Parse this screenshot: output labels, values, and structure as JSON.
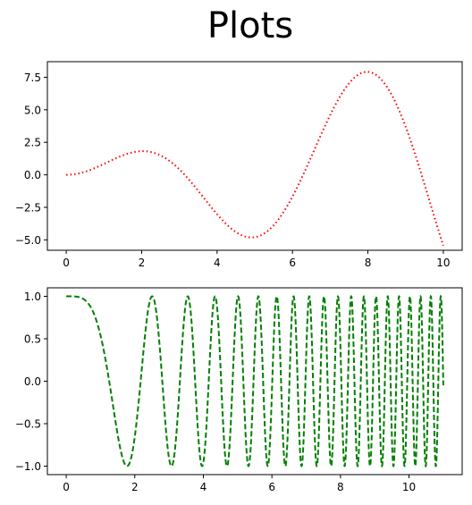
{
  "figure": {
    "suptitle": "Plots"
  },
  "chart_data": [
    {
      "type": "line",
      "title": "",
      "xlabel": "",
      "ylabel": "",
      "xlim": [
        -0.5,
        10.5
      ],
      "ylim": [
        -5.8,
        8.7
      ],
      "xticks": [
        0,
        2,
        4,
        6,
        8,
        10
      ],
      "xtick_labels": [
        "0",
        "2",
        "4",
        "6",
        "8",
        "10"
      ],
      "yticks": [
        -5.0,
        -2.5,
        0.0,
        2.5,
        5.0,
        7.5
      ],
      "ytick_labels": [
        "−5.0",
        "−2.5",
        "0.0",
        "2.5",
        "5.0",
        "7.5"
      ],
      "grid": false,
      "legend": null,
      "series": [
        {
          "color": "#ff0000",
          "line_style": "dotted",
          "x": [
            0.0,
            0.25,
            0.5,
            0.75,
            1.0,
            1.25,
            1.5,
            1.75,
            2.0,
            2.25,
            2.5,
            2.75,
            3.0,
            3.25,
            3.5,
            3.75,
            4.0,
            4.25,
            4.5,
            4.75,
            5.0,
            5.25,
            5.5,
            5.75,
            6.0,
            6.25,
            6.5,
            6.75,
            7.0,
            7.25,
            7.5,
            7.75,
            8.0,
            8.25,
            8.5,
            8.75,
            9.0,
            9.25,
            9.5,
            9.75,
            10.0
          ],
          "y": [
            0.0,
            0.06,
            0.24,
            0.51,
            0.84,
            1.19,
            1.5,
            1.73,
            1.82,
            1.75,
            1.5,
            1.05,
            0.42,
            -0.36,
            -1.23,
            -2.14,
            -3.03,
            -3.82,
            -4.4,
            -4.74,
            -4.79,
            -4.51,
            -3.89,
            -2.93,
            -1.68,
            -0.21,
            1.4,
            3.04,
            4.6,
            5.95,
            7.03,
            7.7,
            7.91,
            7.58,
            6.8,
            5.43,
            3.71,
            1.63,
            -0.72,
            -3.13,
            -5.44
          ]
        }
      ]
    },
    {
      "type": "line",
      "title": "",
      "xlabel": "",
      "ylabel": "",
      "xlim": [
        -0.55,
        11.55
      ],
      "ylim": [
        -1.1,
        1.1
      ],
      "xticks": [
        0,
        2,
        4,
        6,
        8,
        10
      ],
      "xtick_labels": [
        "0",
        "2",
        "4",
        "6",
        "8",
        "10"
      ],
      "yticks": [
        -1.0,
        -0.5,
        0.0,
        0.5,
        1.0
      ],
      "ytick_labels": [
        "−1.0",
        "−0.5",
        "0.0",
        "0.5",
        "1.0"
      ],
      "grid": false,
      "legend": null,
      "function": "cos(x^2)",
      "x_range": [
        0,
        11
      ],
      "series": [
        {
          "color": "#008000",
          "line_style": "dashed",
          "formula": "y = cos(x^2)",
          "x_samples": [
            0,
            0.5,
            1.0,
            1.5,
            1.77,
            2.0,
            2.5,
            3.0,
            3.5,
            4.0,
            5.0,
            6.0,
            7.0,
            8.0,
            9.0,
            10.0,
            11.0
          ],
          "y_samples": [
            1.0,
            0.97,
            0.54,
            -0.63,
            -1.0,
            -0.65,
            1.0,
            -0.91,
            0.96,
            -0.96,
            0.99,
            -0.13,
            0.3,
            0.39,
            0.77,
            0.86,
            -0.12
          ]
        }
      ]
    }
  ]
}
